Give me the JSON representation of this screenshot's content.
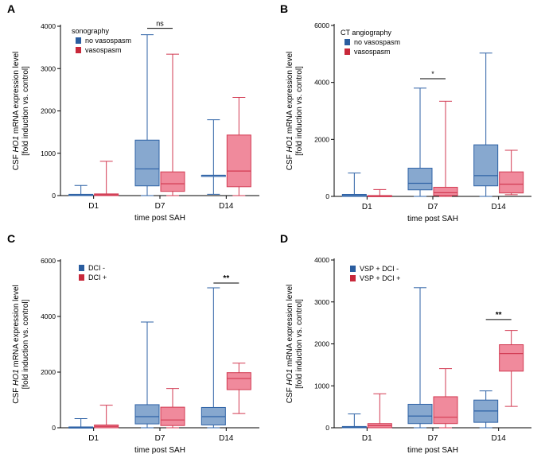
{
  "colors": {
    "blue_fill": "#87a8cf",
    "blue_stroke": "#2e62a6",
    "blue_key": "#2a5d9f",
    "red_fill": "#f08a9c",
    "red_stroke": "#d23a52",
    "red_key": "#c8283a"
  },
  "chart_data": [
    {
      "panel": "A",
      "type": "box",
      "ylabel_pre": "CSF ",
      "ylabel_gene": "HO1",
      "ylabel_post": " mRNA expression level",
      "ylabel_line2": "[fold induction vs. control]",
      "xlabel": "time post SAH",
      "ylim": [
        0,
        4000
      ],
      "yticks": [
        0,
        1000,
        2000,
        3000,
        4000
      ],
      "categories": [
        "D1",
        "D7",
        "D14"
      ],
      "legend_title": "sonography",
      "series": [
        {
          "name": "no vasospasm",
          "color": "blue",
          "boxes": [
            {
              "min": 0,
              "q1": 0,
              "median": 15,
              "q3": 30,
              "max": 240
            },
            {
              "min": 0,
              "q1": 230,
              "median": 630,
              "q3": 1310,
              "max": 3800
            },
            {
              "min": 30,
              "q1": 480,
              "median": 480,
              "q3": 480,
              "max": 1790
            }
          ]
        },
        {
          "name": "vasospasm",
          "color": "red",
          "boxes": [
            {
              "min": 0,
              "q1": 0,
              "median": 20,
              "q3": 40,
              "max": 810
            },
            {
              "min": 0,
              "q1": 100,
              "median": 280,
              "q3": 560,
              "max": 3340
            },
            {
              "min": 0,
              "q1": 210,
              "median": 580,
              "q3": 1430,
              "max": 2320
            }
          ]
        }
      ],
      "annotations": [
        {
          "text": "ns",
          "category": 1,
          "y": 3950,
          "bold": false
        }
      ]
    },
    {
      "panel": "B",
      "type": "box",
      "ylabel_pre": "CSF ",
      "ylabel_gene": "HO1",
      "ylabel_post": " mRNA expression level",
      "ylabel_line2": "[fold induction vs. control]",
      "xlabel": "time post SAH",
      "ylim": [
        0,
        6000
      ],
      "yticks": [
        0,
        2000,
        4000,
        6000
      ],
      "categories": [
        "D1",
        "D7",
        "D14"
      ],
      "legend_title": "CT angiography",
      "series": [
        {
          "name": "no vasospasm",
          "color": "blue",
          "boxes": [
            {
              "min": 0,
              "q1": 0,
              "median": 30,
              "q3": 70,
              "max": 820
            },
            {
              "min": 0,
              "q1": 230,
              "median": 460,
              "q3": 990,
              "max": 3800
            },
            {
              "min": 0,
              "q1": 370,
              "median": 730,
              "q3": 1810,
              "max": 5030
            }
          ]
        },
        {
          "name": "vasospasm",
          "color": "red",
          "boxes": [
            {
              "min": 0,
              "q1": 0,
              "median": 15,
              "q3": 30,
              "max": 240
            },
            {
              "min": 0,
              "q1": 30,
              "median": 130,
              "q3": 320,
              "max": 3340
            },
            {
              "min": 60,
              "q1": 120,
              "median": 430,
              "q3": 860,
              "max": 1620
            }
          ]
        }
      ],
      "annotations": [
        {
          "text": "*",
          "category": 1,
          "y": 4130,
          "bold": false
        }
      ]
    },
    {
      "panel": "C",
      "type": "box",
      "ylabel_pre": "CSF ",
      "ylabel_gene": "HO1",
      "ylabel_post": " mRNA expression level",
      "ylabel_line2": "[fold induction vs. control]",
      "xlabel": "time post SAH",
      "ylim": [
        0,
        6000
      ],
      "yticks": [
        0,
        2000,
        4000,
        6000
      ],
      "categories": [
        "D1",
        "D7",
        "D14"
      ],
      "legend_title": "",
      "series": [
        {
          "name": "DCI -",
          "color": "blue",
          "boxes": [
            {
              "min": 0,
              "q1": 0,
              "median": 15,
              "q3": 30,
              "max": 330
            },
            {
              "min": 0,
              "q1": 140,
              "median": 400,
              "q3": 830,
              "max": 3800
            },
            {
              "min": 0,
              "q1": 100,
              "median": 400,
              "q3": 730,
              "max": 5030
            }
          ]
        },
        {
          "name": "DCI +",
          "color": "red",
          "boxes": [
            {
              "min": 0,
              "q1": 0,
              "median": 50,
              "q3": 100,
              "max": 810
            },
            {
              "min": 0,
              "q1": 80,
              "median": 280,
              "q3": 740,
              "max": 1410
            },
            {
              "min": 510,
              "q1": 1370,
              "median": 1770,
              "q3": 1980,
              "max": 2320
            }
          ]
        }
      ],
      "annotations": [
        {
          "text": "**",
          "category": 2,
          "y": 5200,
          "bold": true
        }
      ]
    },
    {
      "panel": "D",
      "type": "box",
      "ylabel_pre": "CSF ",
      "ylabel_gene": "HO1",
      "ylabel_post": " mRNA expression level",
      "ylabel_line2": "[fold induction vs. control]",
      "xlabel": "time post SAH",
      "ylim": [
        0,
        4000
      ],
      "yticks": [
        0,
        1000,
        2000,
        3000,
        4000
      ],
      "categories": [
        "D1",
        "D7",
        "D14"
      ],
      "legend_title": "",
      "series": [
        {
          "name": "VSP + DCI -",
          "color": "blue",
          "boxes": [
            {
              "min": 0,
              "q1": 0,
              "median": 15,
              "q3": 30,
              "max": 330
            },
            {
              "min": 0,
              "q1": 100,
              "median": 280,
              "q3": 560,
              "max": 3340
            },
            {
              "min": 0,
              "q1": 130,
              "median": 400,
              "q3": 660,
              "max": 880
            }
          ]
        },
        {
          "name": "VSP + DCI +",
          "color": "red",
          "boxes": [
            {
              "min": 0,
              "q1": 0,
              "median": 50,
              "q3": 100,
              "max": 810
            },
            {
              "min": 0,
              "q1": 100,
              "median": 250,
              "q3": 740,
              "max": 1410
            },
            {
              "min": 510,
              "q1": 1350,
              "median": 1770,
              "q3": 1980,
              "max": 2320
            }
          ]
        }
      ],
      "annotations": [
        {
          "text": "**",
          "category": 2,
          "y": 2580,
          "bold": true
        }
      ]
    }
  ]
}
